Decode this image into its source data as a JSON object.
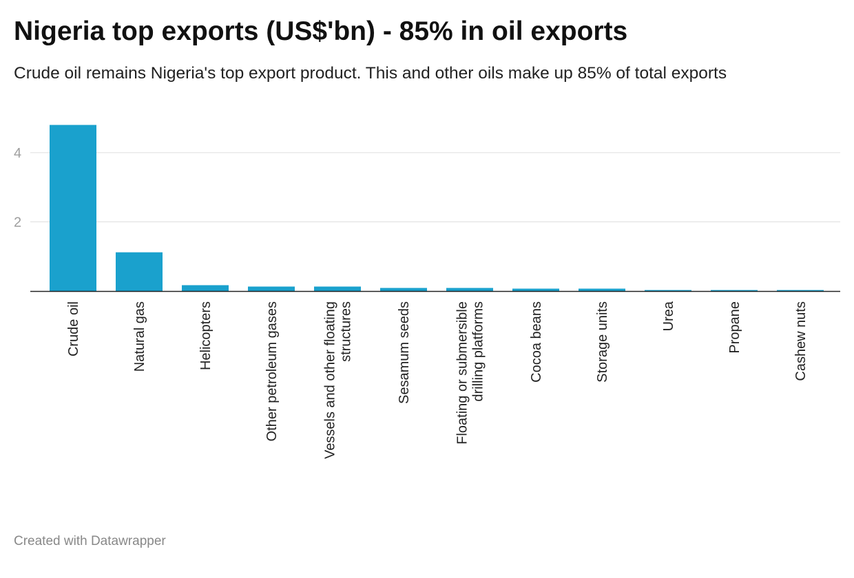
{
  "title": "Nigeria top exports (US$'bn) - 85% in oil exports",
  "subtitle": "Crude oil remains Nigeria's top export product. This and other oils make up 85% of total exports",
  "footer": "Created with Datawrapper",
  "colors": {
    "bar": "#1aa1cd",
    "grid": "#e3e3e3",
    "baseline": "#222222"
  },
  "chart_data": {
    "type": "bar",
    "title": "Nigeria top exports (US$'bn) - 85% in oil exports",
    "subtitle": "Crude oil remains Nigeria's top export product. This and other oils make up 85% of total exports",
    "categories": [
      [
        "Crude oil"
      ],
      [
        "Natural gas"
      ],
      [
        "Helicopters"
      ],
      [
        "Other petroleum gases"
      ],
      [
        "Vessels and other floating",
        "structures"
      ],
      [
        "Sesamum seeds"
      ],
      [
        "Floating or submersible",
        "drilling platforms"
      ],
      [
        "Cocoa beans"
      ],
      [
        "Storage units"
      ],
      [
        "Urea"
      ],
      [
        "Propane"
      ],
      [
        "Cashew nuts"
      ]
    ],
    "values": [
      4.8,
      1.12,
      0.17,
      0.13,
      0.13,
      0.09,
      0.09,
      0.07,
      0.07,
      0.03,
      0.03,
      0.03
    ],
    "yticks": [
      "2",
      "4"
    ],
    "ylim": [
      0,
      5
    ],
    "grid": true,
    "legend": "none"
  }
}
